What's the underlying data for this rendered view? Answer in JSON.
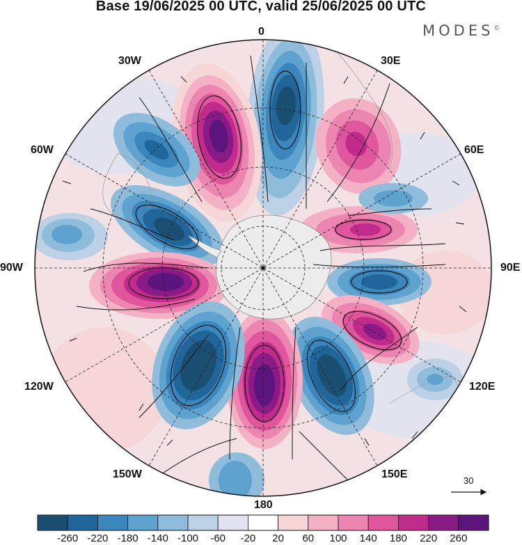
{
  "title": "Base 19/06/2025 00 UTC, valid 25/06/2025 00 UTC",
  "logo": "MODES",
  "logo_mark": "©",
  "longitude_labels": {
    "lon_0": "0",
    "lon_30e": "30E",
    "lon_60e": "60E",
    "lon_90e": "90E",
    "lon_120e": "120E",
    "lon_150e": "150E",
    "lon_180": "180",
    "lon_150w": "150W",
    "lon_120w": "120W",
    "lon_90w": "90W",
    "lon_60w": "60W",
    "lon_30w": "30W"
  },
  "reference_vector": "30",
  "colorbar": {
    "ticks": [
      "-260",
      "-220",
      "-180",
      "-140",
      "-100",
      "-60",
      "-20",
      "20",
      "60",
      "100",
      "140",
      "180",
      "220",
      "260"
    ],
    "colors": [
      "#1b4f72",
      "#21669a",
      "#3a86bd",
      "#5ea3cf",
      "#8fbcda",
      "#bcd0e6",
      "#e3e3f0",
      "#ffffff",
      "#f7d6d8",
      "#f4b0c4",
      "#ec86b0",
      "#e0569c",
      "#c02b8c",
      "#8a1a86",
      "#5c157d"
    ]
  }
}
